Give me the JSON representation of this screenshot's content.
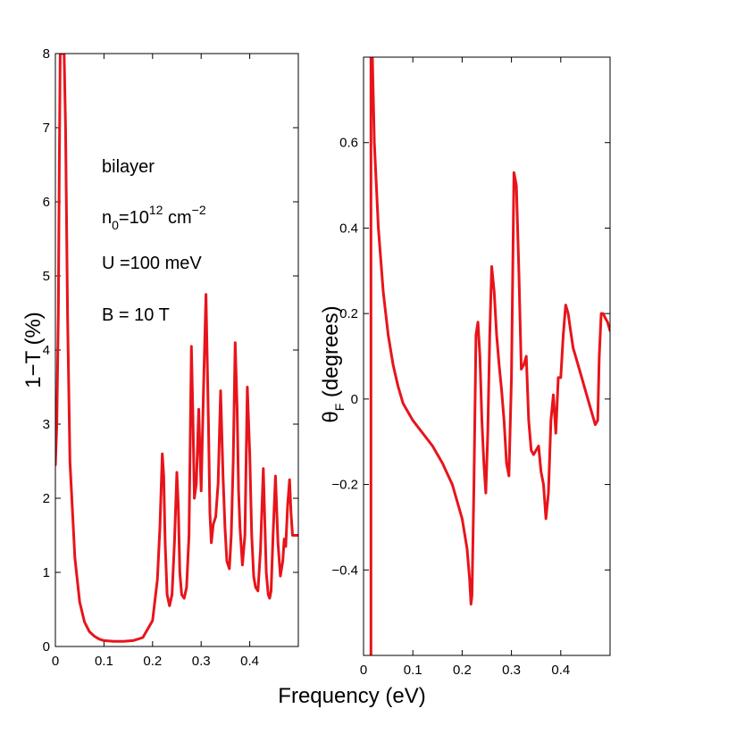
{
  "figure": {
    "xlabel": "Frequency  (eV)",
    "line_color": "#e8141b"
  },
  "annotations": {
    "material": "bilayer",
    "density_base": "n",
    "density_sub": "0",
    "density_eq": "=10",
    "density_exp": "12",
    "density_unit": " cm",
    "density_unit_exp": "−2",
    "gap": "U =100 meV",
    "field": "B = 10 T"
  },
  "chart_data": [
    {
      "type": "line",
      "title": "",
      "xlabel": "Frequency  (eV)",
      "ylabel": "1−T (%)",
      "xlim": [
        0,
        0.5
      ],
      "ylim": [
        0,
        8
      ],
      "xticks": [
        "0",
        "0.1",
        "0.2",
        "0.3",
        "0.4"
      ],
      "xtick_values": [
        0,
        0.1,
        0.2,
        0.3,
        0.4
      ],
      "yticks": [
        "0",
        "1",
        "2",
        "3",
        "4",
        "5",
        "6",
        "7",
        "8"
      ],
      "ytick_values": [
        0,
        1,
        2,
        3,
        4,
        5,
        6,
        7,
        8
      ],
      "series": [
        {
          "name": "1-T",
          "x": [
            0.0,
            0.003,
            0.006,
            0.008,
            0.01,
            0.014,
            0.018,
            0.021,
            0.025,
            0.03,
            0.04,
            0.05,
            0.06,
            0.07,
            0.08,
            0.09,
            0.1,
            0.12,
            0.14,
            0.16,
            0.18,
            0.2,
            0.21,
            0.215,
            0.22,
            0.223,
            0.226,
            0.23,
            0.235,
            0.24,
            0.245,
            0.25,
            0.253,
            0.256,
            0.26,
            0.265,
            0.27,
            0.275,
            0.28,
            0.283,
            0.286,
            0.29,
            0.295,
            0.3,
            0.305,
            0.31,
            0.315,
            0.318,
            0.321,
            0.325,
            0.33,
            0.335,
            0.34,
            0.345,
            0.349,
            0.353,
            0.358,
            0.362,
            0.366,
            0.37,
            0.374,
            0.377,
            0.38,
            0.385,
            0.39,
            0.395,
            0.4,
            0.404,
            0.408,
            0.412,
            0.417,
            0.422,
            0.428,
            0.434,
            0.438,
            0.441,
            0.444,
            0.448,
            0.453,
            0.458,
            0.463,
            0.468,
            0.471,
            0.474,
            0.478,
            0.482,
            0.485,
            0.488,
            0.491,
            0.494,
            0.497,
            0.5
          ],
          "values": [
            2.45,
            3.0,
            4.5,
            6.5,
            8.0,
            8.0,
            8.0,
            7.0,
            4.5,
            2.5,
            1.2,
            0.6,
            0.33,
            0.2,
            0.14,
            0.1,
            0.08,
            0.07,
            0.07,
            0.08,
            0.12,
            0.35,
            0.9,
            1.6,
            2.6,
            2.3,
            1.4,
            0.7,
            0.55,
            0.7,
            1.4,
            2.35,
            1.9,
            1.0,
            0.7,
            0.65,
            0.8,
            1.5,
            4.05,
            3.1,
            2.0,
            2.2,
            3.2,
            2.1,
            3.5,
            4.75,
            3.0,
            1.8,
            1.4,
            1.65,
            1.75,
            2.2,
            3.45,
            2.3,
            1.6,
            1.15,
            1.05,
            1.5,
            2.5,
            4.1,
            3.2,
            2.1,
            1.6,
            1.1,
            1.5,
            3.5,
            2.6,
            1.5,
            0.95,
            0.8,
            0.75,
            1.3,
            2.4,
            1.0,
            0.7,
            0.65,
            0.75,
            1.5,
            2.3,
            1.4,
            0.95,
            1.15,
            1.45,
            1.35,
            1.9,
            2.25,
            1.8,
            1.5,
            1.5,
            1.5,
            1.5,
            1.5
          ]
        }
      ]
    },
    {
      "type": "line",
      "title": "",
      "xlabel": "Frequency  (eV)",
      "ylabel": "θF (degrees)",
      "ylabel_main": "θ",
      "ylabel_sub": "F",
      "ylabel_rest": " (degrees)",
      "xlim": [
        0,
        0.5
      ],
      "ylim": [
        -0.6,
        0.8
      ],
      "xticks": [
        "0",
        "0.1",
        "0.2",
        "0.3",
        "0.4"
      ],
      "xtick_values": [
        0,
        0.1,
        0.2,
        0.3,
        0.4
      ],
      "yticks": [
        "−0.4",
        "−0.2",
        "0",
        "0.2",
        "0.4",
        "0.6"
      ],
      "ytick_values": [
        -0.4,
        -0.2,
        0,
        0.2,
        0.4,
        0.6
      ],
      "series": [
        {
          "name": "theta_F",
          "x": [
            0.015,
            0.015,
            0.018,
            0.022,
            0.03,
            0.04,
            0.05,
            0.06,
            0.07,
            0.08,
            0.09,
            0.1,
            0.12,
            0.14,
            0.16,
            0.18,
            0.2,
            0.21,
            0.215,
            0.218,
            0.22,
            0.224,
            0.228,
            0.232,
            0.236,
            0.24,
            0.244,
            0.248,
            0.252,
            0.256,
            0.26,
            0.265,
            0.27,
            0.275,
            0.28,
            0.285,
            0.29,
            0.295,
            0.3,
            0.305,
            0.31,
            0.315,
            0.32,
            0.325,
            0.33,
            0.335,
            0.34,
            0.345,
            0.35,
            0.355,
            0.36,
            0.365,
            0.37,
            0.375,
            0.38,
            0.385,
            0.39,
            0.395,
            0.4,
            0.405,
            0.41,
            0.415,
            0.42,
            0.425,
            0.43,
            0.44,
            0.45,
            0.46,
            0.47,
            0.475,
            0.478,
            0.482,
            0.486,
            0.49,
            0.495,
            0.5
          ],
          "values": [
            -0.6,
            0.8,
            0.8,
            0.6,
            0.4,
            0.25,
            0.15,
            0.08,
            0.03,
            -0.01,
            -0.03,
            -0.05,
            -0.08,
            -0.11,
            -0.15,
            -0.2,
            -0.28,
            -0.35,
            -0.42,
            -0.48,
            -0.46,
            -0.2,
            0.15,
            0.18,
            0.1,
            -0.05,
            -0.15,
            -0.22,
            -0.08,
            0.15,
            0.31,
            0.25,
            0.15,
            0.08,
            0.02,
            -0.05,
            -0.15,
            -0.18,
            0.05,
            0.53,
            0.5,
            0.3,
            0.07,
            0.08,
            0.1,
            -0.05,
            -0.12,
            -0.13,
            -0.12,
            -0.11,
            -0.17,
            -0.2,
            -0.28,
            -0.22,
            -0.05,
            0.01,
            -0.08,
            0.05,
            0.05,
            0.15,
            0.22,
            0.2,
            0.16,
            0.12,
            0.1,
            0.06,
            0.02,
            -0.02,
            -0.06,
            -0.05,
            0.1,
            0.2,
            0.2,
            0.19,
            0.18,
            0.16
          ]
        }
      ]
    }
  ]
}
